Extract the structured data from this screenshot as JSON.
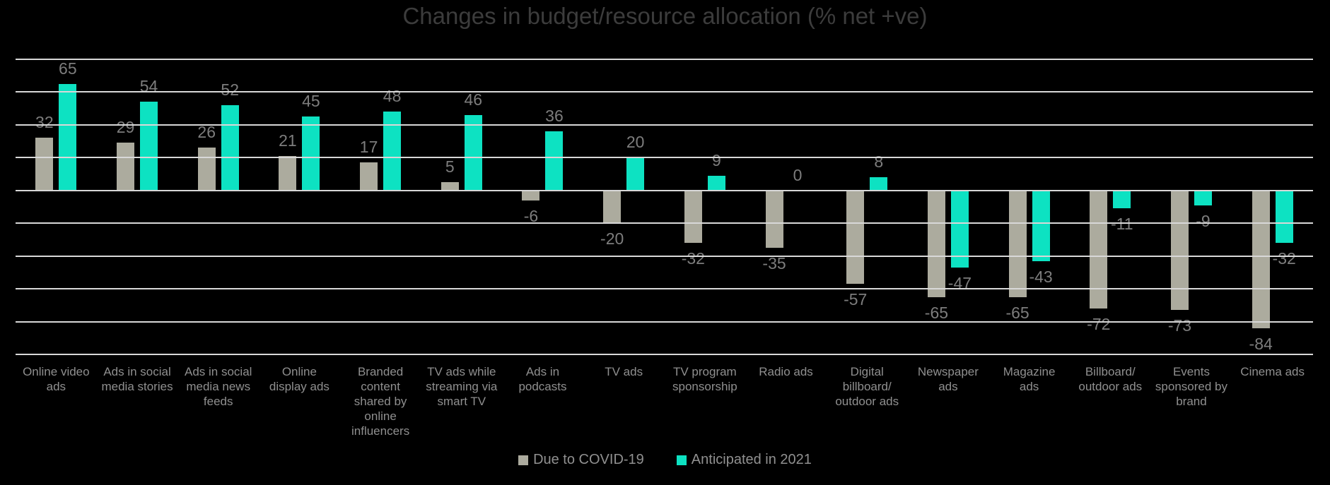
{
  "title": "Changes in budget/resource allocation (% net +ve)",
  "colors": {
    "background": "#000000",
    "title_text": "#3c3c3c",
    "gridline": "#d8d8d8",
    "value_label_text": "#7d7d7d",
    "category_label_text": "#8f8f8f",
    "legend_text": "#909090",
    "series_covid": "#acab9e",
    "series_2021": "#0de2c2"
  },
  "legend": {
    "items": [
      {
        "label": "Due to COVID-19",
        "color": "#acab9e"
      },
      {
        "label": "Anticipated in 2021",
        "color": "#0de2c2"
      }
    ]
  },
  "chart_data": {
    "type": "bar",
    "title": "Changes in budget/resource allocation (% net +ve)",
    "categories": [
      "Online video\nads",
      "Ads in social\nmedia stories",
      "Ads in social\nmedia news\nfeeds",
      "Online\ndisplay ads",
      "Branded\ncontent\nshared by\nonline\ninfluencers",
      "TV ads while\nstreaming via\nsmart TV",
      "Ads in\npodcasts",
      "TV ads",
      "TV program\nsponsorship",
      "Radio ads",
      "Digital\nbillboard/\noutdoor ads",
      "Newspaper\nads",
      "Magazine\nads",
      "Billboard/\noutdoor ads",
      "Events\nsponsored by\nbrand",
      "Cinema ads"
    ],
    "series": [
      {
        "name": "Due to COVID-19",
        "color": "#acab9e",
        "values": [
          32,
          29,
          26,
          21,
          17,
          5,
          -6,
          -20,
          -32,
          -35,
          -57,
          -65,
          -65,
          -72,
          -73,
          -84
        ]
      },
      {
        "name": "Anticipated in 2021",
        "color": "#0de2c2",
        "values": [
          65,
          54,
          52,
          45,
          48,
          46,
          36,
          20,
          9,
          0,
          8,
          -47,
          -43,
          -11,
          -9,
          -32
        ]
      }
    ],
    "ylabel": "",
    "xlabel": "",
    "ylim": [
      -100,
      80
    ],
    "grid_step": 20,
    "grid": true,
    "y_axis_tick_labels_visible": false,
    "data_labels": "outside-end",
    "legend_position": "bottom"
  }
}
